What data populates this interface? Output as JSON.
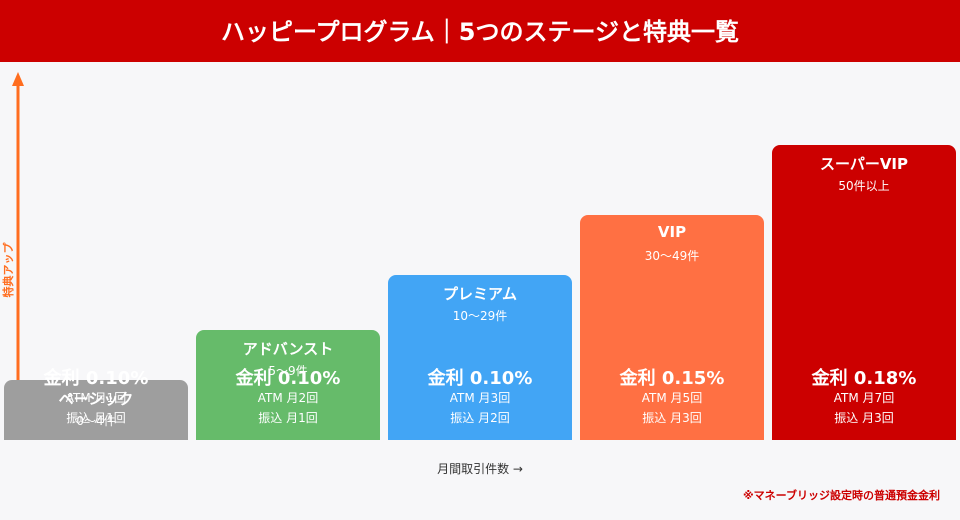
{
  "header": {
    "title": "ハッピープログラム｜5つのステージと特典一覧"
  },
  "axis": {
    "y_label": "特典アップ",
    "x_label": "月間取引件数 →"
  },
  "stages": [
    {
      "name": "ベーシック",
      "range": "0〜4件",
      "rate": "金利 0.10%",
      "atm": "ATM 月1回",
      "transfer": "振込 月1回"
    },
    {
      "name": "アドバンスト",
      "range": "5〜9件",
      "rate": "金利 0.10%",
      "atm": "ATM 月2回",
      "transfer": "振込 月1回"
    },
    {
      "name": "プレミアム",
      "range": "10〜29件",
      "rate": "金利 0.10%",
      "atm": "ATM 月3回",
      "transfer": "振込 月2回"
    },
    {
      "name": "VIP",
      "range": "30〜49件",
      "rate": "金利 0.15%",
      "atm": "ATM 月5回",
      "transfer": "振込 月3回"
    },
    {
      "name": "スーパーVIP",
      "range": "50件以上",
      "rate": "金利 0.18%",
      "atm": "ATM 月7回",
      "transfer": "振込 月3回"
    }
  ],
  "footnote": "※マネーブリッジ設定時の普通預金金利"
}
